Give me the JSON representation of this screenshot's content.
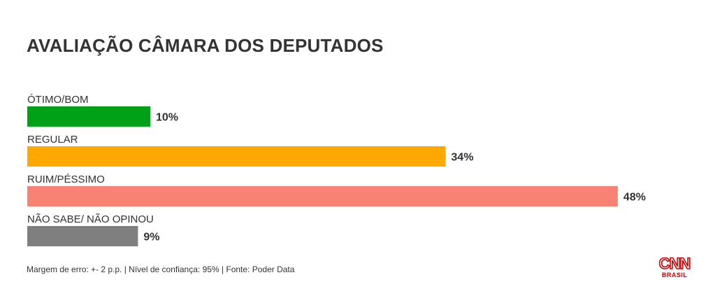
{
  "title": "AVALIAÇÃO CÂMARA DOS DEPUTADOS",
  "footer": "Margem de erro: +- 2 p.p. | Nível de confiança: 95% | Fonte: Poder Data",
  "logo": {
    "main": "CNN",
    "sub": "BRASIL",
    "color": "#cc0000"
  },
  "chart_data": {
    "type": "bar",
    "orientation": "horizontal",
    "title": "AVALIAÇÃO CÂMARA DOS DEPUTADOS",
    "categories": [
      "ÓTIMO/BOM",
      "REGULAR",
      "RUIM/PÉSSIMO",
      "NÃO SABE/ NÃO OPINOU"
    ],
    "values": [
      10,
      34,
      48,
      9
    ],
    "value_labels": [
      "10%",
      "34%",
      "48%",
      "9%"
    ],
    "colors": [
      "#00a019",
      "#ffa800",
      "#f88273",
      "#7f7f7f"
    ],
    "unit": "%",
    "xlabel": "",
    "ylabel": "",
    "grid": false,
    "legend": "none"
  }
}
